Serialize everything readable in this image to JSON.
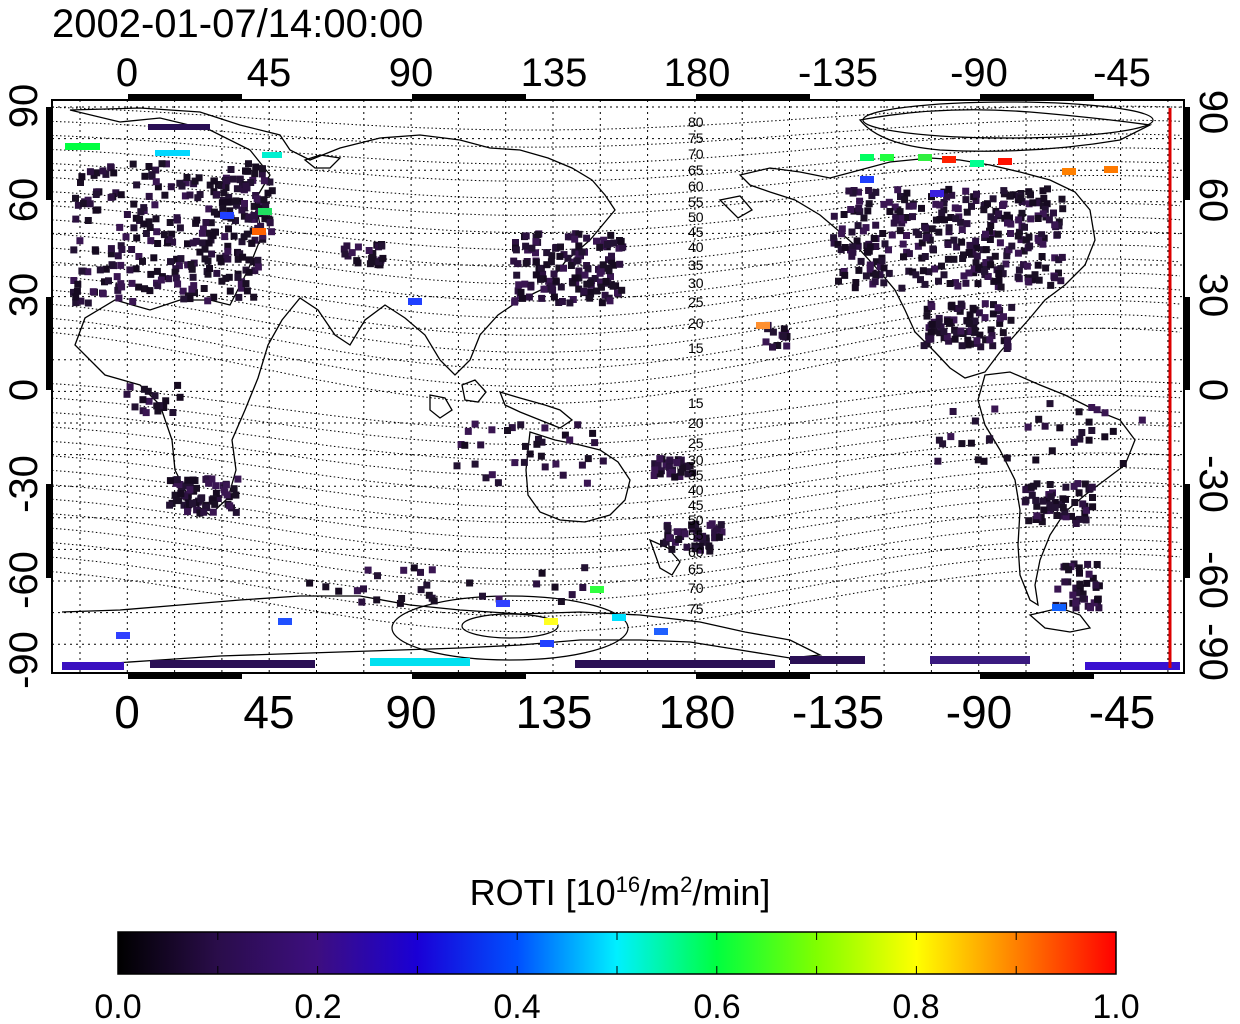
{
  "title": "2002-01-07/14:00:00",
  "map": {
    "top_ticks": [
      "0",
      "45",
      "90",
      "135",
      "180",
      "-135",
      "-90",
      "-45"
    ],
    "bottom_ticks": [
      "0",
      "45",
      "90",
      "135",
      "180",
      "-135",
      "-90",
      "-45"
    ],
    "left_ticks": [
      "90",
      "60",
      "30",
      "0",
      "-30",
      "-60",
      "-90"
    ],
    "right_ticks": [
      "90",
      "60",
      "30",
      "0",
      "-30",
      "-60",
      "-90"
    ],
    "mlat_labels_north": [
      "80",
      "75",
      "70",
      "65",
      "60",
      "55",
      "50",
      "45",
      "40",
      "35",
      "30",
      "25",
      "20",
      "15"
    ],
    "mlat_labels_south": [
      "15",
      "20",
      "25",
      "30",
      "35",
      "40",
      "45",
      "50",
      "55",
      "60",
      "65",
      "70",
      "75"
    ],
    "terminator_color": "#dd0000"
  },
  "colorbar": {
    "label_main": "ROTI  [10",
    "label_sup1": "16",
    "label_mid": "/m",
    "label_sup2": "2",
    "label_end": "/min]",
    "ticks": [
      "0.0",
      "0.2",
      "0.4",
      "0.6",
      "0.8",
      "1.0"
    ],
    "colors": [
      "#000000",
      "#2a0d4a",
      "#3d0e80",
      "#1a00d6",
      "#0050ff",
      "#00f0ff",
      "#00ff40",
      "#80ff00",
      "#ffff00",
      "#ff8000",
      "#ff0000"
    ]
  }
}
